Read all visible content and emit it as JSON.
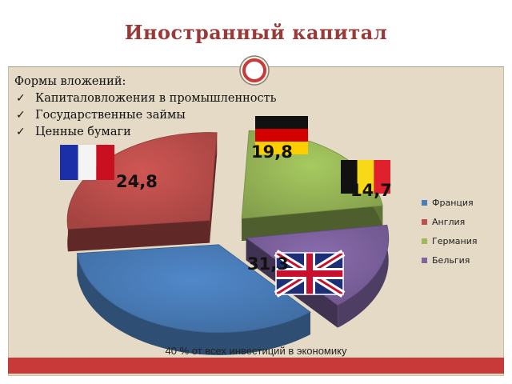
{
  "slide": {
    "title": "Иностранный капитал",
    "caption": "40 % от всех инвестиций в экономику"
  },
  "forms": {
    "heading": "Формы вложений:",
    "items": [
      "Капиталовложения в промышленность",
      "Государственные займы",
      "Ценные бумаги"
    ]
  },
  "colors": {
    "title": "#9a3a38",
    "background": "#e4dac5",
    "bar": "#c83a3a"
  },
  "chart_data": {
    "type": "pie",
    "title": "",
    "categories": [
      "Франция",
      "Англия",
      "Германия",
      "Бельгия"
    ],
    "values": [
      31.3,
      24.8,
      19.8,
      14.7
    ],
    "labels": [
      "31,3",
      "24,8",
      "19,8",
      "14,7"
    ],
    "colors": [
      "#4a7ebb",
      "#c0504d",
      "#9bbb59",
      "#8064a2"
    ],
    "exploded": true,
    "three_d": true,
    "legend": "right",
    "flags": [
      "united-kingdom-flag",
      "france-flag",
      "germany-flag",
      "belgium-flag"
    ]
  }
}
